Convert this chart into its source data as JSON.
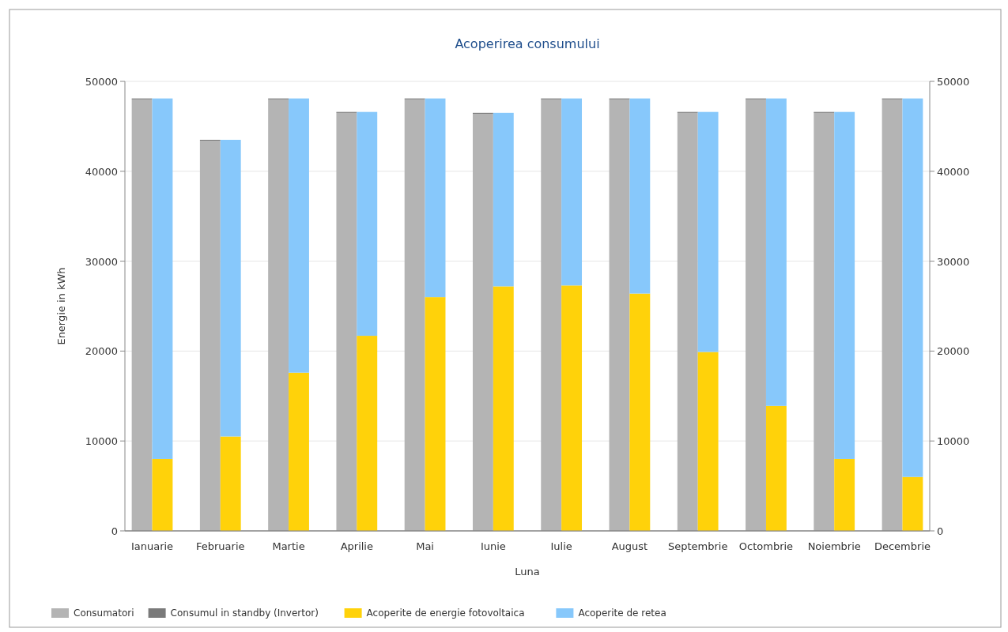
{
  "chart_data": [
    {
      "type": "bar",
      "title": "Acoperirea consumului",
      "xlabel": "Luna",
      "ylabel": "Energie in kWh",
      "categories": [
        "Ianuarie",
        "Februarie",
        "Martie",
        "Aprilie",
        "Mai",
        "Iunie",
        "Iulie",
        "August",
        "Septembrie",
        "Octombrie",
        "Noiembrie",
        "Decembrie"
      ],
      "series": [
        {
          "name": "Consumatori",
          "color": "#b4b4b4",
          "values": [
            48000,
            43400,
            48000,
            46500,
            48000,
            46400,
            48000,
            48000,
            46500,
            48000,
            46500,
            48000
          ]
        },
        {
          "name": "Consumul in standby (Invertor)",
          "color": "#7a7a7a",
          "values": [
            100,
            100,
            100,
            100,
            100,
            100,
            100,
            100,
            100,
            100,
            100,
            100
          ]
        }
      ],
      "ylim": [
        0,
        50000
      ],
      "yticks": [
        0,
        10000,
        20000,
        30000,
        40000,
        50000
      ],
      "stacked": true,
      "grid": "y",
      "legend": "bottom"
    },
    {
      "type": "bar",
      "categories": [
        null,
        null,
        null,
        null,
        null,
        null,
        null,
        null,
        null,
        null,
        null,
        null
      ],
      "series": [
        {
          "name": "Acoperite de energie fotovoltaica",
          "color": "#ffd20a",
          "values": [
            8000,
            10500,
            17600,
            21700,
            26000,
            27200,
            27300,
            26400,
            19900,
            13900,
            8000,
            6000
          ]
        },
        {
          "name": "Acoperite de retea",
          "color": "#87c8fb",
          "values": [
            40100,
            33000,
            30500,
            24900,
            22100,
            19300,
            20800,
            21700,
            26700,
            34200,
            38600,
            42100
          ]
        }
      ],
      "ylim": [
        0,
        50000
      ],
      "yticks": [
        0,
        10000,
        20000,
        30000,
        40000,
        50000
      ],
      "stacked": true,
      "legend": "bottom",
      "tick_labels": "y"
    }
  ]
}
